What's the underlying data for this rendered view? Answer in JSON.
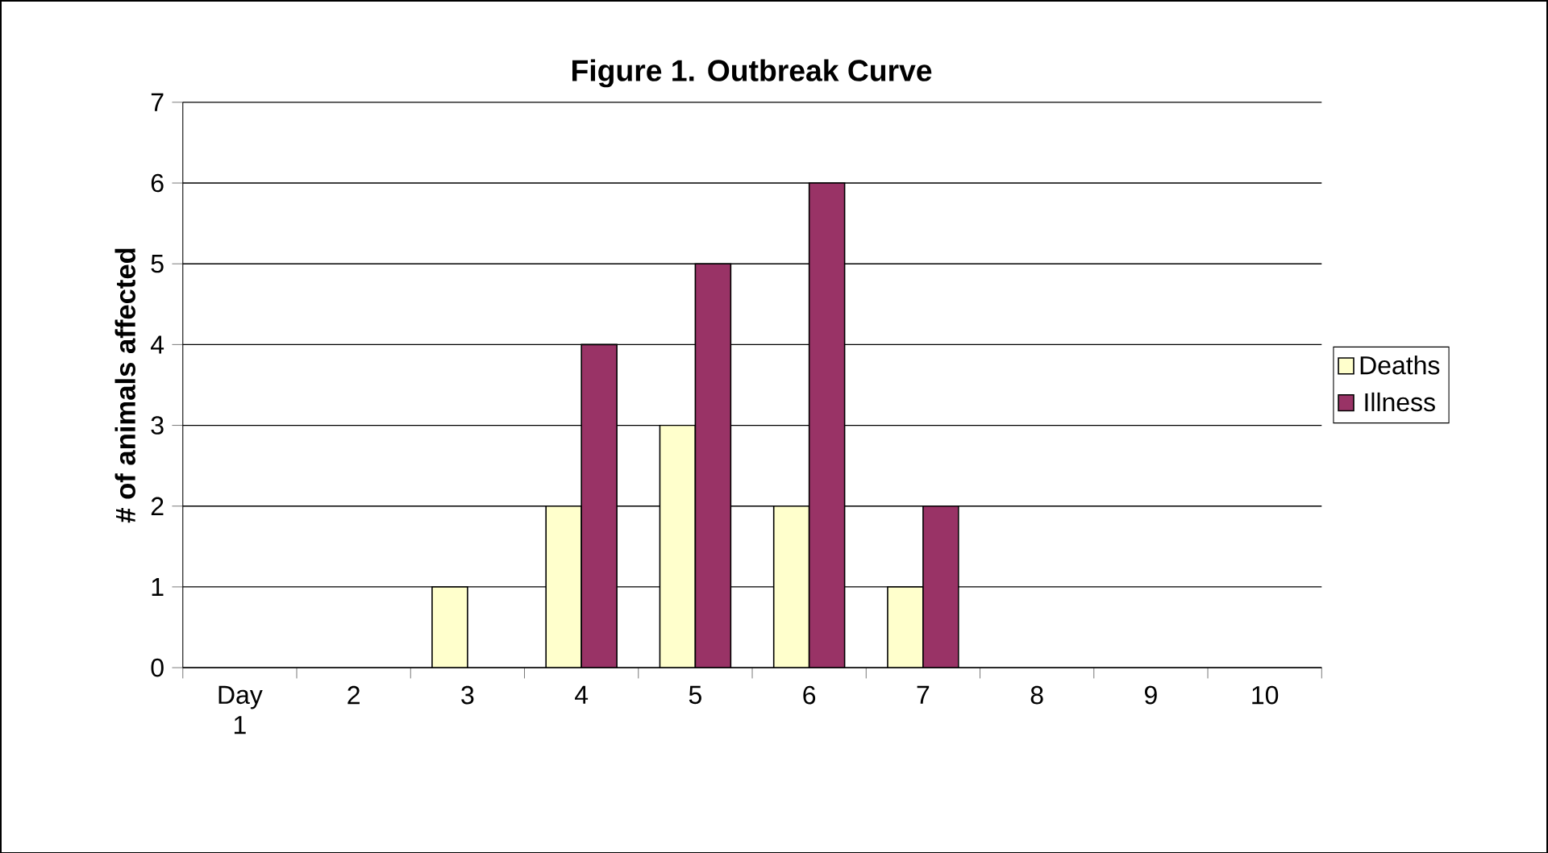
{
  "chart_data": {
    "type": "bar",
    "title": "Figure 1.  Outbreak Curve",
    "ylabel": "# of animals affected",
    "categories": [
      "Day 1",
      "2",
      "3",
      "4",
      "5",
      "6",
      "7",
      "8",
      "9",
      "10"
    ],
    "series": [
      {
        "name": "Deaths",
        "color": "#ffffcc",
        "values": [
          0,
          0,
          1,
          2,
          3,
          2,
          1,
          0,
          0,
          0
        ]
      },
      {
        "name": "Illness",
        "color": "#993366",
        "values": [
          0,
          0,
          0,
          4,
          5,
          6,
          2,
          0,
          0,
          0
        ]
      }
    ],
    "ylim": [
      0,
      7
    ],
    "yticks": [
      0,
      1,
      2,
      3,
      4,
      5,
      6,
      7
    ],
    "grid": "y",
    "legend": "right"
  }
}
